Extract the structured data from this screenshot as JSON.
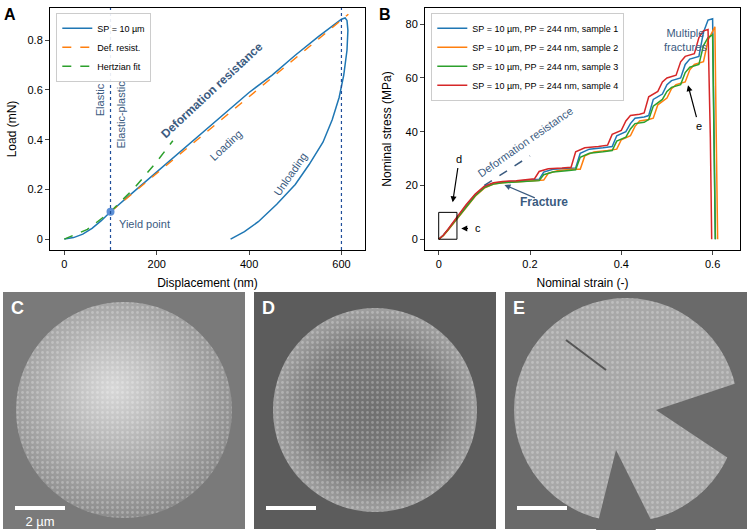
{
  "chart_data": [
    {
      "type": "line",
      "title": "A",
      "x_label": "Displacement (nm)",
      "y_label": "Load (mN)",
      "xlim": [
        -31,
        651
      ],
      "xticks": [
        0,
        200,
        400,
        600
      ],
      "ylim": [
        -0.044,
        0.93
      ],
      "yticks": [
        0,
        0.2,
        0.4,
        0.6,
        0.8
      ],
      "grid": false,
      "legend": "upper left",
      "series": [
        {
          "name": "SP = 10 µm",
          "color": "#1f77b4",
          "line_style": "solid",
          "x": [
            0,
            20,
            40,
            60,
            80,
            100,
            150,
            200,
            250,
            300,
            350,
            400,
            450,
            500,
            550,
            600,
            608,
            612,
            614,
            612,
            605,
            595,
            580,
            560,
            530,
            500,
            460,
            420,
            390,
            360
          ],
          "values": [
            0,
            0.006,
            0.02,
            0.043,
            0.074,
            0.11,
            0.19,
            0.27,
            0.35,
            0.43,
            0.51,
            0.59,
            0.66,
            0.74,
            0.815,
            0.885,
            0.89,
            0.88,
            0.84,
            0.76,
            0.66,
            0.57,
            0.48,
            0.39,
            0.3,
            0.22,
            0.14,
            0.07,
            0.03,
            0
          ]
        },
        {
          "name": "Def. resist.",
          "color": "#ff7f0e",
          "line_style": "dashed",
          "x": [
            100,
            615
          ],
          "values": [
            0.11,
            0.905
          ]
        },
        {
          "name": "Hertzian fit",
          "color": "#2ca02c",
          "line_style": "dashed",
          "x": [
            0,
            50,
            100,
            150,
            200,
            235
          ],
          "values": [
            0,
            0.039,
            0.11,
            0.202,
            0.311,
            0.396
          ]
        }
      ],
      "yield_point": {
        "x": 100,
        "y": 0.11
      },
      "vlines": [
        100,
        600
      ],
      "annotations": [
        "Elastic",
        "Elastic-plastic",
        "Deformation resistance",
        "Loading",
        "Unloading",
        "Yield point"
      ]
    },
    {
      "type": "line",
      "title": "B",
      "x_label": "Nominal strain (-)",
      "y_label": "Nominal stress (MPa)",
      "xlim": [
        -0.03,
        0.66
      ],
      "xticks": [
        0,
        0.2,
        0.4,
        0.6
      ],
      "ylim": [
        -4,
        86
      ],
      "yticks": [
        0,
        20,
        40,
        60,
        80
      ],
      "grid": false,
      "legend": "upper left",
      "series": [
        {
          "name": "SP = 10 µm, PP = 244 nm, sample 1",
          "color": "#1f77b4",
          "line_style": "solid",
          "x": [
            0,
            0.01,
            0.02,
            0.04,
            0.06,
            0.08,
            0.1,
            0.12,
            0.14,
            0.17,
            0.2,
            0.22,
            0.23,
            0.25,
            0.28,
            0.3,
            0.31,
            0.33,
            0.36,
            0.38,
            0.39,
            0.41,
            0.42,
            0.43,
            0.45,
            0.46,
            0.47,
            0.49,
            0.5,
            0.51,
            0.53,
            0.54,
            0.55,
            0.57,
            0.58,
            0.59,
            0.6,
            0.603,
            0.606
          ],
          "values": [
            0,
            1.5,
            3.5,
            8,
            12.5,
            16.5,
            19.5,
            20.8,
            21.3,
            21.6,
            22,
            22.3,
            25,
            26,
            26.3,
            26.5,
            32,
            33.5,
            34,
            34.5,
            38.5,
            40,
            43,
            45,
            45.5,
            46,
            52,
            54,
            57.5,
            59,
            60,
            65,
            67,
            68,
            77,
            81.5,
            82,
            40,
            0
          ]
        },
        {
          "name": "SP = 10 µm, PP = 244 nm, sample 2",
          "color": "#ff7f0e",
          "line_style": "solid",
          "x": [
            0,
            0.01,
            0.02,
            0.04,
            0.06,
            0.08,
            0.1,
            0.12,
            0.14,
            0.17,
            0.2,
            0.23,
            0.24,
            0.26,
            0.29,
            0.31,
            0.32,
            0.34,
            0.37,
            0.39,
            0.4,
            0.42,
            0.43,
            0.44,
            0.46,
            0.47,
            0.48,
            0.5,
            0.51,
            0.52,
            0.54,
            0.55,
            0.56,
            0.58,
            0.59,
            0.6,
            0.605,
            0.608,
            0.611
          ],
          "values": [
            0,
            1.3,
            3.2,
            7.5,
            12,
            16,
            19,
            20.5,
            21,
            21.3,
            21.6,
            22,
            24.5,
            25.5,
            26,
            26,
            31,
            32.5,
            33,
            33.5,
            37,
            38.5,
            42,
            44,
            44.5,
            45,
            50,
            52.5,
            56,
            57.5,
            58.5,
            63,
            65,
            66,
            74,
            77.5,
            79,
            38,
            0
          ]
        },
        {
          "name": "SP = 10 µm, PP = 244 nm, sample 3",
          "color": "#2ca02c",
          "line_style": "solid",
          "x": [
            0,
            0.01,
            0.02,
            0.04,
            0.06,
            0.08,
            0.1,
            0.12,
            0.14,
            0.17,
            0.2,
            0.22,
            0.23,
            0.25,
            0.28,
            0.3,
            0.31,
            0.33,
            0.36,
            0.38,
            0.39,
            0.41,
            0.42,
            0.43,
            0.45,
            0.46,
            0.47,
            0.49,
            0.5,
            0.51,
            0.53,
            0.54,
            0.55,
            0.57,
            0.58,
            0.59,
            0.6,
            0.603,
            0.606
          ],
          "values": [
            0,
            1.4,
            3.4,
            7.8,
            12.2,
            16.2,
            19.2,
            20.5,
            21,
            21.2,
            21.5,
            21.8,
            24,
            25,
            25.5,
            25.8,
            30.5,
            32,
            32.5,
            33,
            36.5,
            38,
            41,
            43,
            43.5,
            44.5,
            49.5,
            52,
            55,
            56.5,
            57.5,
            62,
            64,
            65,
            72,
            75,
            76,
            37,
            0
          ]
        },
        {
          "name": "SP = 10 µm, PP = 244 nm, sample 4",
          "color": "#d62728",
          "line_style": "solid",
          "x": [
            0,
            0.01,
            0.02,
            0.04,
            0.06,
            0.08,
            0.1,
            0.12,
            0.14,
            0.17,
            0.2,
            0.21,
            0.22,
            0.24,
            0.27,
            0.29,
            0.3,
            0.32,
            0.35,
            0.37,
            0.38,
            0.4,
            0.41,
            0.42,
            0.44,
            0.45,
            0.46,
            0.48,
            0.49,
            0.5,
            0.52,
            0.53,
            0.54,
            0.56,
            0.57,
            0.58,
            0.59,
            0.595,
            0.598
          ],
          "values": [
            0,
            1.5,
            3.6,
            8.2,
            12.8,
            16.8,
            19.7,
            21,
            21.5,
            21.8,
            22.2,
            22.5,
            25.2,
            26.2,
            26.5,
            26.8,
            32.5,
            34,
            34.5,
            35,
            39,
            40.5,
            44,
            46,
            46.5,
            47,
            53,
            55,
            58.5,
            60,
            61,
            66,
            68,
            69,
            75,
            77.5,
            78,
            38,
            0
          ]
        }
      ],
      "guide_line": {
        "x": [
          0.1,
          0.2
        ],
        "y": [
          20,
          31
        ]
      },
      "inset_box": {
        "x": [
          0,
          0.04
        ],
        "y": [
          0,
          10
        ]
      },
      "annotations": [
        "Deformation resistance",
        "Fracture",
        "Multiple fractures",
        "c",
        "d",
        "e"
      ]
    }
  ],
  "panels": [
    {
      "label": "C",
      "scale_bar": "2 µm"
    },
    {
      "label": "D"
    },
    {
      "label": "E"
    }
  ]
}
